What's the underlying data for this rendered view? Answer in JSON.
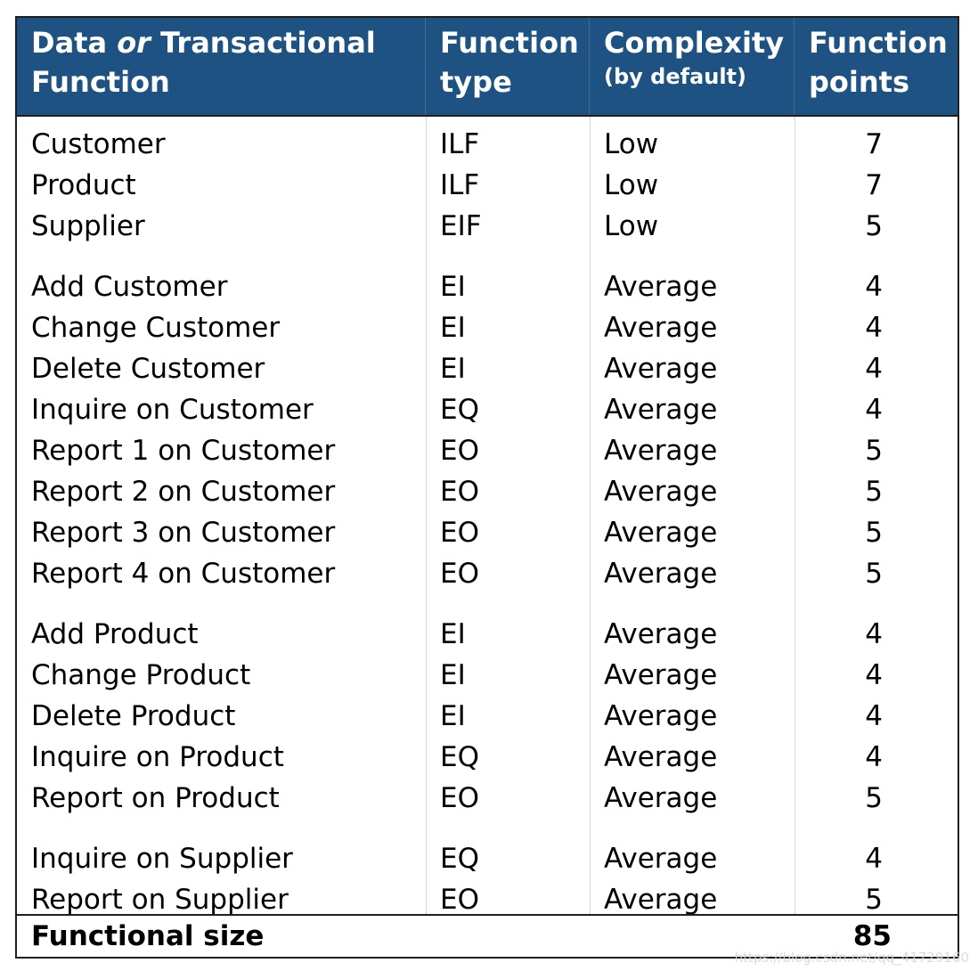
{
  "header": {
    "col1_a": "Data ",
    "col1_b": "or",
    "col1_c": " Transactional",
    "col1_d": "Function",
    "col2_a": "Function",
    "col2_b": "type",
    "col3_a": "Complexity",
    "col3_b": "(by default)",
    "col4_a": "Function",
    "col4_b": "points"
  },
  "groups": [
    {
      "rows": [
        {
          "name": "Customer",
          "type": "ILF",
          "complexity": "Low",
          "points": "7"
        },
        {
          "name": "Product",
          "type": "ILF",
          "complexity": "Low",
          "points": "7"
        },
        {
          "name": "Supplier",
          "type": "EIF",
          "complexity": "Low",
          "points": "5"
        }
      ]
    },
    {
      "rows": [
        {
          "name": "Add Customer",
          "type": "EI",
          "complexity": "Average",
          "points": "4"
        },
        {
          "name": "Change Customer",
          "type": "EI",
          "complexity": "Average",
          "points": "4"
        },
        {
          "name": "Delete Customer",
          "type": "EI",
          "complexity": "Average",
          "points": "4"
        },
        {
          "name": "Inquire on Customer",
          "type": "EQ",
          "complexity": "Average",
          "points": "4"
        },
        {
          "name": "Report 1 on Customer",
          "type": "EO",
          "complexity": "Average",
          "points": "5"
        },
        {
          "name": "Report 2 on Customer",
          "type": "EO",
          "complexity": "Average",
          "points": "5"
        },
        {
          "name": "Report 3 on Customer",
          "type": "EO",
          "complexity": "Average",
          "points": "5"
        },
        {
          "name": "Report 4 on Customer",
          "type": "EO",
          "complexity": "Average",
          "points": "5"
        }
      ]
    },
    {
      "rows": [
        {
          "name": "Add Product",
          "type": "EI",
          "complexity": "Average",
          "points": "4"
        },
        {
          "name": "Change Product",
          "type": "EI",
          "complexity": "Average",
          "points": "4"
        },
        {
          "name": "Delete Product",
          "type": "EI",
          "complexity": "Average",
          "points": "4"
        },
        {
          "name": "Inquire on Product",
          "type": "EQ",
          "complexity": "Average",
          "points": "4"
        },
        {
          "name": "Report on Product",
          "type": "EO",
          "complexity": "Average",
          "points": "5"
        }
      ]
    },
    {
      "rows": [
        {
          "name": "Inquire on Supplier",
          "type": "EQ",
          "complexity": "Average",
          "points": "4"
        },
        {
          "name": "Report on Supplier",
          "type": "EO",
          "complexity": "Average",
          "points": "5"
        }
      ]
    }
  ],
  "footer": {
    "label": "Functional size",
    "total": "85"
  },
  "watermark": "https://blog.csdn.net/qq_41729160",
  "colors": {
    "header_bg": "#1e5282",
    "header_text": "#ffffff",
    "border": "#1f1f1f"
  }
}
